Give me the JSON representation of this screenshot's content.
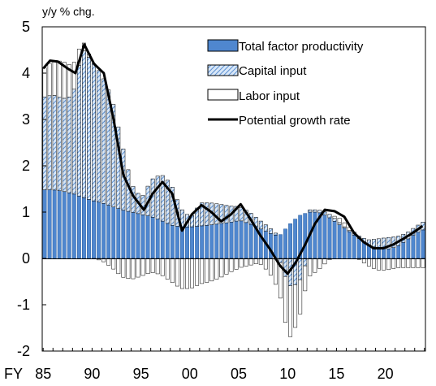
{
  "chart_data": {
    "type": "bar",
    "unit_label": "y/y % chg.",
    "x_prefix": "FY",
    "x_ticks": [
      "85",
      "90",
      "95",
      "00",
      "05",
      "10",
      "15",
      "20"
    ],
    "x_tick_values": [
      1985,
      1990,
      1995,
      2000,
      2005,
      2010,
      2015,
      2020
    ],
    "y_ticks": [
      "5",
      "4",
      "3",
      "2",
      "1",
      "0",
      "-1",
      "-2"
    ],
    "y_tick_values": [
      5,
      4,
      3,
      2,
      1,
      0,
      -1,
      -2
    ],
    "ylim": [
      -2,
      5
    ],
    "xlim": [
      1984.9,
      2024.1
    ],
    "grid": false,
    "legend_position": "top-right",
    "colors": {
      "tfp": "#4f87cf",
      "capital_hatch_bg": "#d8e7f8",
      "capital_hatch_line": "#5b8fd0",
      "labor": "#ffffff",
      "line": "#000000",
      "outline": "#000000"
    },
    "legend": [
      {
        "key": "tfp",
        "label": "Total factor productivity"
      },
      {
        "key": "capital",
        "label": "Capital input"
      },
      {
        "key": "labor",
        "label": "Labor input"
      },
      {
        "key": "line",
        "label": "Potential growth rate"
      }
    ],
    "quarters_x": 1985.0,
    "series": [
      {
        "name": "Total factor productivity",
        "key": "tfp",
        "anchors_x": [
          1985,
          1986,
          1987,
          1988,
          1989,
          1990,
          1991,
          1992,
          1993,
          1994,
          1995,
          1996,
          1997,
          1998,
          1999,
          2000,
          2001,
          2002,
          2003,
          2004,
          2005,
          2006,
          2007,
          2008,
          2009,
          2010,
          2011,
          2012,
          2013,
          2014,
          2015,
          2016,
          2017,
          2018,
          2019,
          2020,
          2021,
          2022,
          2023,
          2024
        ],
        "anchors_y": [
          1.48,
          1.48,
          1.45,
          1.4,
          1.32,
          1.25,
          1.2,
          1.12,
          1.05,
          1.0,
          0.95,
          0.9,
          0.82,
          0.72,
          0.68,
          0.68,
          0.7,
          0.72,
          0.75,
          0.78,
          0.82,
          0.75,
          0.65,
          0.55,
          0.48,
          0.72,
          0.92,
          1.0,
          1.0,
          0.9,
          0.75,
          0.6,
          0.45,
          0.3,
          0.22,
          0.2,
          0.25,
          0.4,
          0.55,
          0.65
        ]
      },
      {
        "name": "Capital input",
        "key": "capital",
        "anchors_x": [
          1985,
          1986,
          1987,
          1988,
          1989,
          1990,
          1991,
          1992,
          1993,
          1994,
          1995,
          1996,
          1997,
          1998,
          1999,
          2000,
          2001,
          2002,
          2003,
          2004,
          2005,
          2006,
          2007,
          2008,
          2009,
          2010,
          2011,
          2012,
          2013,
          2014,
          2015,
          2016,
          2017,
          2018,
          2019,
          2020,
          2021,
          2022,
          2023,
          2024
        ],
        "anchors_y": [
          2.0,
          2.05,
          2.0,
          2.1,
          3.2,
          3.0,
          2.75,
          2.35,
          1.45,
          0.6,
          0.35,
          0.8,
          1.0,
          0.9,
          0.4,
          0.2,
          0.5,
          0.48,
          0.42,
          0.35,
          0.3,
          0.25,
          0.18,
          0.12,
          0.0,
          -0.6,
          -0.55,
          0.05,
          0.05,
          0.08,
          0.05,
          0.02,
          0.05,
          0.1,
          0.2,
          0.25,
          0.22,
          0.15,
          0.15,
          0.18
        ]
      },
      {
        "name": "Labor input",
        "key": "labor",
        "anchors_x": [
          1985,
          1986,
          1987,
          1988,
          1989,
          1990,
          1991,
          1992,
          1993,
          1994,
          1995,
          1996,
          1997,
          1998,
          1999,
          2000,
          2001,
          2002,
          2003,
          2004,
          2005,
          2006,
          2007,
          2008,
          2009,
          2010,
          2011,
          2012,
          2013,
          2014,
          2015,
          2016,
          2017,
          2018,
          2019,
          2020,
          2021,
          2022,
          2023,
          2024
        ],
        "anchors_y": [
          0.6,
          0.75,
          0.8,
          0.65,
          0.2,
          0.0,
          -0.05,
          -0.2,
          -0.4,
          -0.45,
          -0.38,
          -0.3,
          -0.35,
          -0.5,
          -0.65,
          -0.65,
          -0.55,
          -0.5,
          -0.42,
          -0.3,
          -0.2,
          -0.15,
          -0.1,
          -0.3,
          -0.7,
          -1.15,
          -0.8,
          -0.4,
          -0.25,
          -0.05,
          0.1,
          0.08,
          0.0,
          -0.15,
          -0.25,
          -0.25,
          -0.2,
          -0.2,
          -0.2,
          -0.2
        ]
      },
      {
        "name": "Potential growth rate",
        "key": "line",
        "x": [
          1985,
          1985.7,
          1986.5,
          1987.5,
          1988.3,
          1989.2,
          1990.2,
          1991.2,
          1992.2,
          1993.2,
          1994.2,
          1995.3,
          1996.2,
          1997.2,
          1998.2,
          1999.2,
          2000.2,
          2001.2,
          2002.2,
          2003.2,
          2004.2,
          2005.2,
          2006.2,
          2007.2,
          2008.2,
          2009.2,
          2010.0,
          2010.8,
          2011.8,
          2012.8,
          2013.8,
          2014.8,
          2015.8,
          2016.8,
          2017.8,
          2018.8,
          2019.8,
          2020.8,
          2021.8,
          2022.8,
          2023.8
        ],
        "y": [
          4.1,
          4.27,
          4.25,
          4.1,
          4.0,
          4.62,
          4.2,
          4.0,
          3.0,
          1.8,
          1.35,
          1.05,
          1.4,
          1.65,
          1.4,
          0.6,
          0.95,
          1.15,
          1.0,
          0.8,
          0.95,
          1.17,
          0.85,
          0.5,
          0.2,
          -0.15,
          -0.33,
          -0.1,
          0.3,
          0.75,
          1.05,
          1.02,
          0.9,
          0.55,
          0.35,
          0.22,
          0.22,
          0.3,
          0.42,
          0.55,
          0.7
        ]
      }
    ]
  }
}
